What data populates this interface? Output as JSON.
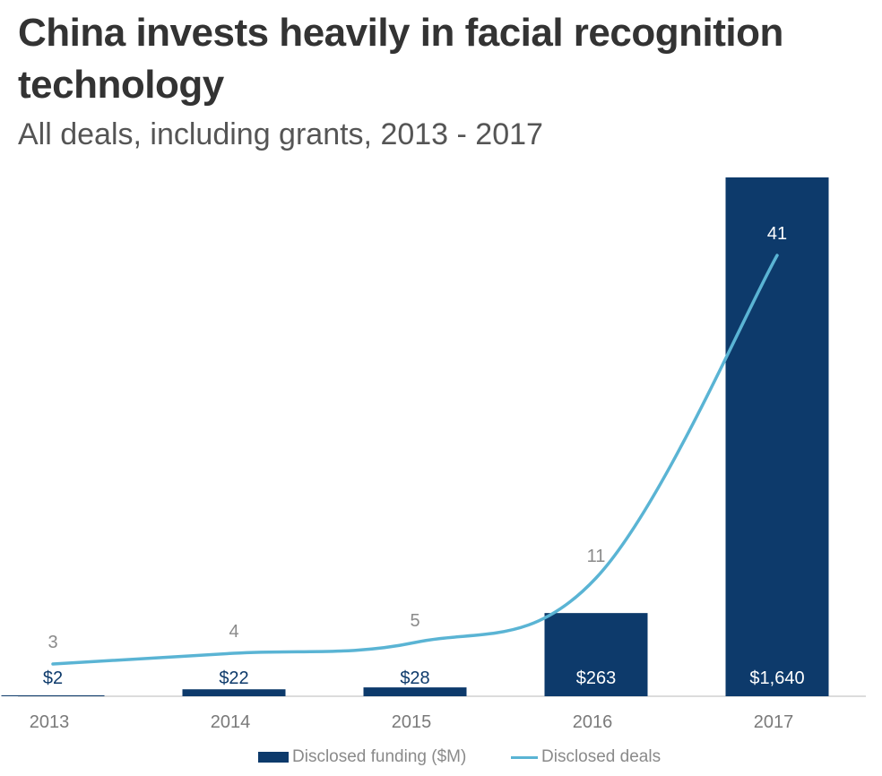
{
  "title": "China invests heavily in facial recognition technology",
  "subtitle": "All deals, including grants, 2013 - 2017",
  "colors": {
    "bar": "#0d3a6b",
    "line": "#5ab4d4",
    "axis": "#d0d0d0",
    "text": "#333333"
  },
  "legend": {
    "funding_label": "Disclosed funding ($M)",
    "deals_label": "Disclosed deals"
  },
  "chart_data": {
    "type": "bar",
    "title": "China invests heavily in facial recognition technology",
    "subtitle": "All deals, including grants, 2013 - 2017",
    "categories": [
      "2013",
      "2014",
      "2015",
      "2016",
      "2017"
    ],
    "series": [
      {
        "name": "Disclosed funding ($M)",
        "kind": "bar",
        "values": [
          2,
          22,
          28,
          263,
          1640
        ],
        "labels": [
          "$2",
          "$22",
          "$28",
          "$263",
          "$1,640"
        ]
      },
      {
        "name": "Disclosed deals",
        "kind": "line",
        "values": [
          3,
          4,
          5,
          11,
          41
        ],
        "labels": [
          "3",
          "4",
          "5",
          "11",
          "41"
        ]
      }
    ],
    "xlabel": "",
    "ylabel": "",
    "grid": false,
    "legend_position": "bottom-center"
  }
}
